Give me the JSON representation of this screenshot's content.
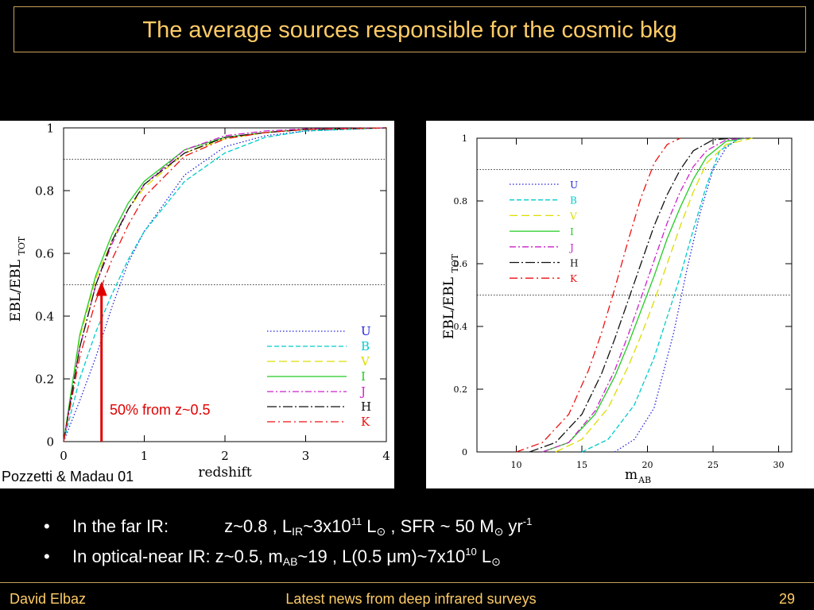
{
  "slide": {
    "title": "The average sources responsible for the cosmic bkg",
    "footer_left": "David Elbaz",
    "footer_center": "Latest news from deep infrared surveys",
    "footer_right": "29"
  },
  "left_panel": {
    "credit": "Pozzetti & Madau 01",
    "annotation": "50% from z~0.5"
  },
  "bullets": {
    "b1": {
      "a": "In the far IR:",
      "b": "z~0.8 , L",
      "c": "IR",
      "d": "~3x10",
      "e": "11",
      "f": " L",
      "g": "⊙",
      "h": " , SFR ~ 50 M",
      "i": "⊙",
      "j": " yr",
      "k": "-1"
    },
    "b2": {
      "a": "In optical-near IR: z~0.5, m",
      "b": "AB",
      "c": "~19 , L(0.5 ",
      "d": "μ",
      "e": "m)~7x10",
      "f": "10",
      "g": " L",
      "h": "⊙"
    }
  },
  "chart_data": [
    {
      "type": "line",
      "xlabel": "redshift",
      "ylabel": "EBL/EBL",
      "ylabel_sub": "TOT",
      "xlim": [
        0,
        4
      ],
      "ylim": [
        0,
        1
      ],
      "xticks": [
        0,
        1,
        2,
        3,
        4
      ],
      "yticks": [
        0,
        0.2,
        0.4,
        0.6,
        0.8,
        1
      ],
      "hlines": [
        0.5,
        0.9
      ],
      "arrow": {
        "x": 0.47,
        "y_from": 0,
        "y_to": 0.5,
        "color": "#e00000"
      },
      "legend_position": "bottom-right",
      "series": [
        {
          "name": "U",
          "color": "#2222dd",
          "dash": "1.5 2.5",
          "x": [
            0,
            0.2,
            0.4,
            0.6,
            0.8,
            1.0,
            1.5,
            2.0,
            2.5,
            3.0,
            4.0
          ],
          "values": [
            0,
            0.13,
            0.27,
            0.43,
            0.57,
            0.67,
            0.85,
            0.94,
            0.975,
            0.99,
            1.0
          ]
        },
        {
          "name": "B",
          "color": "#00cccc",
          "dash": "6 3",
          "x": [
            0,
            0.2,
            0.4,
            0.6,
            0.8,
            1.0,
            1.5,
            2.0,
            2.5,
            3.0,
            4.0
          ],
          "values": [
            0,
            0.2,
            0.35,
            0.47,
            0.58,
            0.67,
            0.83,
            0.92,
            0.97,
            0.99,
            1.0
          ]
        },
        {
          "name": "V",
          "color": "#dddd00",
          "dash": "10 5",
          "x": [
            0,
            0.2,
            0.4,
            0.6,
            0.8,
            1.0,
            1.5,
            2.0,
            2.5,
            3.0,
            4.0
          ],
          "values": [
            0,
            0.33,
            0.52,
            0.64,
            0.74,
            0.81,
            0.92,
            0.965,
            0.985,
            0.995,
            1.0
          ]
        },
        {
          "name": "I",
          "color": "#22cc22",
          "dash": "",
          "x": [
            0,
            0.2,
            0.4,
            0.6,
            0.8,
            1.0,
            1.5,
            2.0,
            2.5,
            3.0,
            4.0
          ],
          "values": [
            0,
            0.34,
            0.53,
            0.66,
            0.76,
            0.83,
            0.93,
            0.97,
            0.985,
            0.995,
            1.0
          ]
        },
        {
          "name": "J",
          "color": "#cc22cc",
          "dash": "8 3 2 3",
          "x": [
            0,
            0.2,
            0.4,
            0.6,
            0.8,
            1.0,
            1.5,
            2.0,
            2.5,
            3.0,
            4.0
          ],
          "values": [
            0,
            0.3,
            0.5,
            0.63,
            0.74,
            0.82,
            0.93,
            0.975,
            0.99,
            0.997,
            1.0
          ]
        },
        {
          "name": "H",
          "color": "#111111",
          "dash": "12 3 2 3",
          "x": [
            0,
            0.2,
            0.4,
            0.6,
            0.8,
            1.0,
            1.5,
            2.0,
            2.5,
            3.0,
            4.0
          ],
          "values": [
            0,
            0.3,
            0.5,
            0.64,
            0.74,
            0.82,
            0.92,
            0.97,
            0.985,
            0.995,
            1.0
          ]
        },
        {
          "name": "K",
          "color": "#ee1111",
          "dash": "10 4 2 4",
          "x": [
            0,
            0.2,
            0.4,
            0.6,
            0.8,
            1.0,
            1.5,
            2.0,
            2.5,
            3.0,
            4.0
          ],
          "values": [
            0,
            0.27,
            0.45,
            0.58,
            0.69,
            0.78,
            0.91,
            0.965,
            0.985,
            0.995,
            1.0
          ]
        }
      ]
    },
    {
      "type": "line",
      "xlabel": "m",
      "xlabel_sub": "AB",
      "ylabel": "EBL/EBL",
      "ylabel_sub": "TOT",
      "xlim": [
        7,
        31
      ],
      "ylim": [
        0,
        1
      ],
      "xticks": [
        10,
        15,
        20,
        25,
        30
      ],
      "yticks": [
        0,
        0.2,
        0.4,
        0.6,
        0.8,
        1
      ],
      "hlines": [
        0.5,
        0.9
      ],
      "legend_position": "top-left",
      "series": [
        {
          "name": "U",
          "color": "#2222dd",
          "dash": "1.5 2.5",
          "x": [
            17.5,
            19,
            20.5,
            22,
            23,
            24,
            25,
            26,
            27
          ],
          "values": [
            0,
            0.04,
            0.14,
            0.38,
            0.58,
            0.76,
            0.9,
            0.97,
            1.0
          ]
        },
        {
          "name": "B",
          "color": "#00cccc",
          "dash": "6 3",
          "x": [
            15,
            17,
            19,
            20.5,
            21.5,
            22.5,
            23.5,
            24.5,
            25.5,
            27
          ],
          "values": [
            0,
            0.04,
            0.15,
            0.3,
            0.43,
            0.56,
            0.71,
            0.85,
            0.96,
            1.0
          ]
        },
        {
          "name": "V",
          "color": "#dddd00",
          "dash": "10 5",
          "x": [
            13,
            15,
            17,
            18.5,
            19.5,
            20.5,
            21.5,
            22.5,
            23.5,
            24.5,
            26,
            28
          ],
          "values": [
            0,
            0.04,
            0.14,
            0.27,
            0.37,
            0.48,
            0.6,
            0.72,
            0.83,
            0.92,
            0.98,
            1.0
          ]
        },
        {
          "name": "I",
          "color": "#22cc22",
          "dash": "",
          "x": [
            12,
            14,
            16,
            17.5,
            18.5,
            19.5,
            20.5,
            21.5,
            22.5,
            23.5,
            24.5,
            26,
            27.5
          ],
          "values": [
            0,
            0.03,
            0.12,
            0.24,
            0.34,
            0.45,
            0.56,
            0.68,
            0.78,
            0.87,
            0.94,
            0.99,
            1.0
          ]
        },
        {
          "name": "J",
          "color": "#cc22cc",
          "dash": "8 3 2 3",
          "x": [
            12,
            14,
            16,
            17.5,
            18.5,
            19.5,
            20.5,
            21.5,
            22.5,
            23.5,
            24.5,
            26,
            27.5
          ],
          "values": [
            0,
            0.03,
            0.13,
            0.26,
            0.37,
            0.49,
            0.61,
            0.73,
            0.83,
            0.91,
            0.96,
            0.995,
            1.0
          ]
        },
        {
          "name": "H",
          "color": "#111111",
          "dash": "12 3 2 3",
          "x": [
            11,
            13,
            15,
            16.5,
            17.5,
            18.5,
            19.5,
            20.5,
            21.5,
            22.5,
            23.5,
            25,
            26.5
          ],
          "values": [
            0,
            0.03,
            0.12,
            0.25,
            0.36,
            0.48,
            0.6,
            0.72,
            0.82,
            0.9,
            0.96,
            0.995,
            1.0
          ]
        },
        {
          "name": "K",
          "color": "#ee1111",
          "dash": "10 4 2 4",
          "x": [
            10,
            12,
            14,
            15.5,
            16.5,
            17.5,
            18.5,
            19.5,
            20.5,
            21.5,
            22.5
          ],
          "values": [
            0,
            0.03,
            0.12,
            0.26,
            0.38,
            0.52,
            0.67,
            0.81,
            0.92,
            0.98,
            1.0
          ]
        }
      ]
    }
  ]
}
